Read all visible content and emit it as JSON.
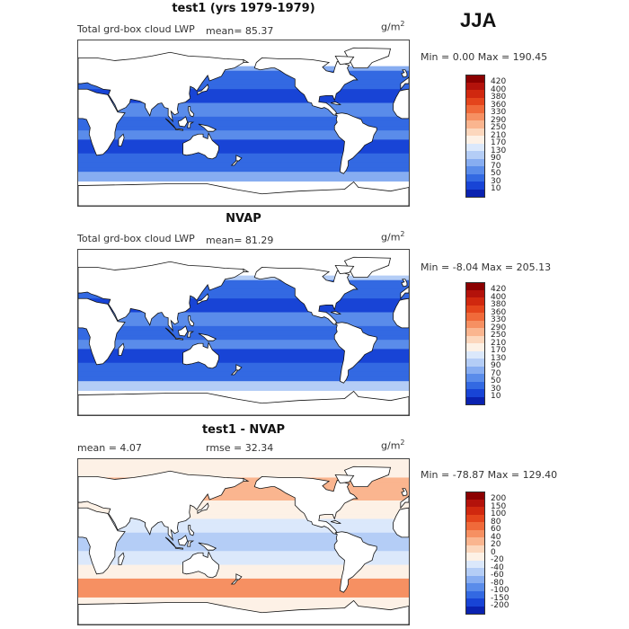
{
  "season": "JJA",
  "panels": [
    {
      "title": "test1 (yrs 1979-1979)",
      "left_text": "Total grd-box cloud LWP",
      "middle_text": "mean=   85.37",
      "units": "g/m",
      "units_exp": "2",
      "minmax": "Min =    0.00 Max = 190.45",
      "colorbar": {
        "labels": [
          "420",
          "400",
          "380",
          "360",
          "330",
          "290",
          "250",
          "210",
          "170",
          "130",
          "90",
          "70",
          "50",
          "30",
          "10"
        ],
        "colors": [
          "#8b0000",
          "#b3120b",
          "#d0280f",
          "#e4451c",
          "#f06a3a",
          "#f69062",
          "#fab58f",
          "#fcd7bd",
          "#fdf1e6",
          "#dbe8fb",
          "#b4cdf6",
          "#87adf1",
          "#5a8cea",
          "#3369e2",
          "#1844d6",
          "#0a22b0"
        ]
      }
    },
    {
      "title": "NVAP",
      "left_text": "Total grd-box cloud LWP",
      "middle_text": "mean=   81.29",
      "units": "g/m",
      "units_exp": "2",
      "minmax": "Min =   -8.04 Max = 205.13",
      "colorbar": {
        "labels": [
          "420",
          "400",
          "380",
          "360",
          "330",
          "290",
          "250",
          "210",
          "170",
          "130",
          "90",
          "70",
          "50",
          "30",
          "10"
        ],
        "colors": [
          "#8b0000",
          "#b3120b",
          "#d0280f",
          "#e4451c",
          "#f06a3a",
          "#f69062",
          "#fab58f",
          "#fcd7bd",
          "#fdf1e6",
          "#dbe8fb",
          "#b4cdf6",
          "#87adf1",
          "#5a8cea",
          "#3369e2",
          "#1844d6",
          "#0a22b0"
        ]
      }
    },
    {
      "title": "test1 - NVAP",
      "left_text": "mean =    4.07",
      "middle_text": "rmse =   32.34",
      "units": "g/m",
      "units_exp": "2",
      "minmax": "Min = -78.87 Max = 129.40",
      "colorbar": {
        "labels": [
          "200",
          "150",
          "100",
          "80",
          "60",
          "40",
          "20",
          "0",
          "-20",
          "-40",
          "-60",
          "-80",
          "-100",
          "-150",
          "-200"
        ],
        "colors": [
          "#8b0000",
          "#b3120b",
          "#d0280f",
          "#e4451c",
          "#f06a3a",
          "#f69062",
          "#fab58f",
          "#fcd7bd",
          "#fdf1e6",
          "#dbe8fb",
          "#b4cdf6",
          "#87adf1",
          "#5a8cea",
          "#3369e2",
          "#1844d6",
          "#0a22b0"
        ]
      }
    }
  ]
}
